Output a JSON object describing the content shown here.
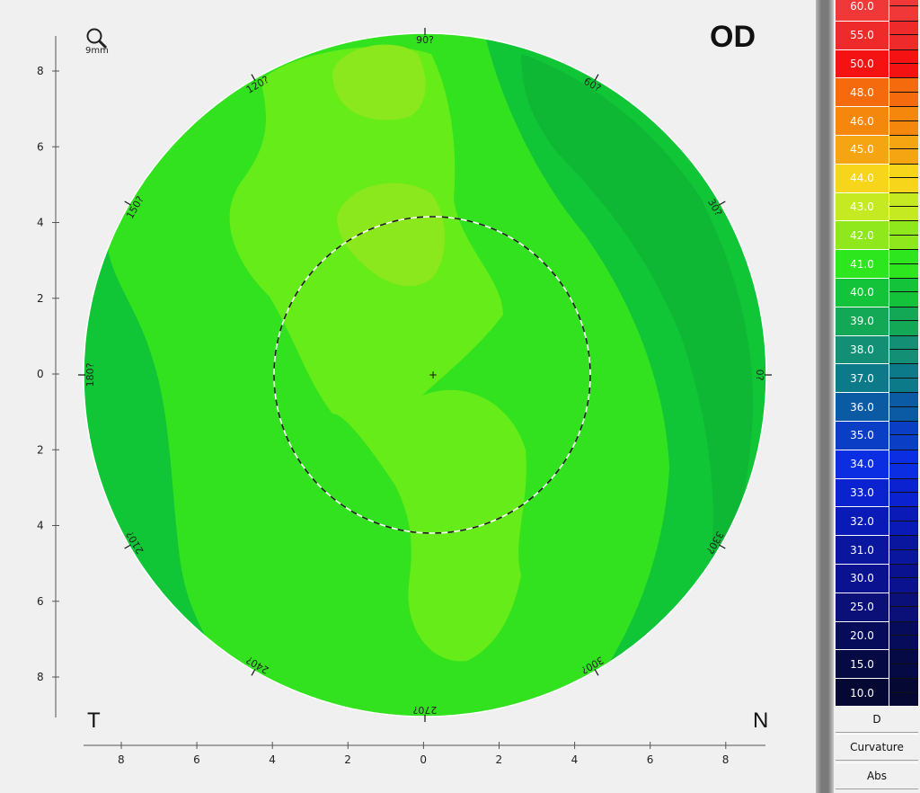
{
  "map": {
    "eye_label": "OD",
    "zoom_label": "9mm",
    "left_label": "T",
    "right_label": "N",
    "x_axis_ticks": [
      "8",
      "6",
      "4",
      "2",
      "0",
      "2",
      "4",
      "6",
      "8"
    ],
    "y_axis_ticks": [
      "8",
      "6",
      "4",
      "2",
      "0",
      "2",
      "4",
      "6",
      "8"
    ],
    "degree_labels": [
      {
        "angle": 0,
        "text": "0?"
      },
      {
        "angle": 30,
        "text": "30?"
      },
      {
        "angle": 60,
        "text": "60?"
      },
      {
        "angle": 90,
        "text": "90?"
      },
      {
        "angle": 120,
        "text": "120?"
      },
      {
        "angle": 150,
        "text": "150?"
      },
      {
        "angle": 180,
        "text": "180?"
      },
      {
        "angle": 210,
        "text": "210?"
      },
      {
        "angle": 240,
        "text": "240?"
      },
      {
        "angle": 270,
        "text": "270?"
      },
      {
        "angle": 300,
        "text": "300?"
      },
      {
        "angle": 330,
        "text": "330?"
      }
    ],
    "zone_colors": {
      "c40": "#10c636",
      "c41": "#33e21f",
      "c42": "#66ec18",
      "c43": "#8ae81c"
    }
  },
  "scale": {
    "steps": [
      {
        "label": "60.0",
        "color": "#f03838"
      },
      {
        "label": "55.0",
        "color": "#ee2a2a"
      },
      {
        "label": "50.0",
        "color": "#f41212"
      },
      {
        "label": "48.0",
        "color": "#f56a0c"
      },
      {
        "label": "46.0",
        "color": "#f5870c"
      },
      {
        "label": "45.0",
        "color": "#f6a512"
      },
      {
        "label": "44.0",
        "color": "#f6d51a"
      },
      {
        "label": "43.0",
        "color": "#c6ea22"
      },
      {
        "label": "42.0",
        "color": "#8ee81c"
      },
      {
        "label": "41.0",
        "color": "#2ee61e"
      },
      {
        "label": "40.0",
        "color": "#13c43a"
      },
      {
        "label": "39.0",
        "color": "#13a856"
      },
      {
        "label": "38.0",
        "color": "#128f74"
      },
      {
        "label": "37.0",
        "color": "#0d7a8a"
      },
      {
        "label": "36.0",
        "color": "#0b5aa4"
      },
      {
        "label": "35.0",
        "color": "#0a3ec4"
      },
      {
        "label": "34.0",
        "color": "#0b2ee2"
      },
      {
        "label": "33.0",
        "color": "#0a22d0"
      },
      {
        "label": "32.0",
        "color": "#0a1ab6"
      },
      {
        "label": "31.0",
        "color": "#0a169e"
      },
      {
        "label": "30.0",
        "color": "#0a1290"
      },
      {
        "label": "25.0",
        "color": "#0a1078"
      },
      {
        "label": "20.0",
        "color": "#060c5a"
      },
      {
        "label": "15.0",
        "color": "#050a44"
      },
      {
        "label": "10.0",
        "color": "#040832"
      }
    ],
    "buttons": [
      "D",
      "Curvature",
      "Abs"
    ]
  }
}
